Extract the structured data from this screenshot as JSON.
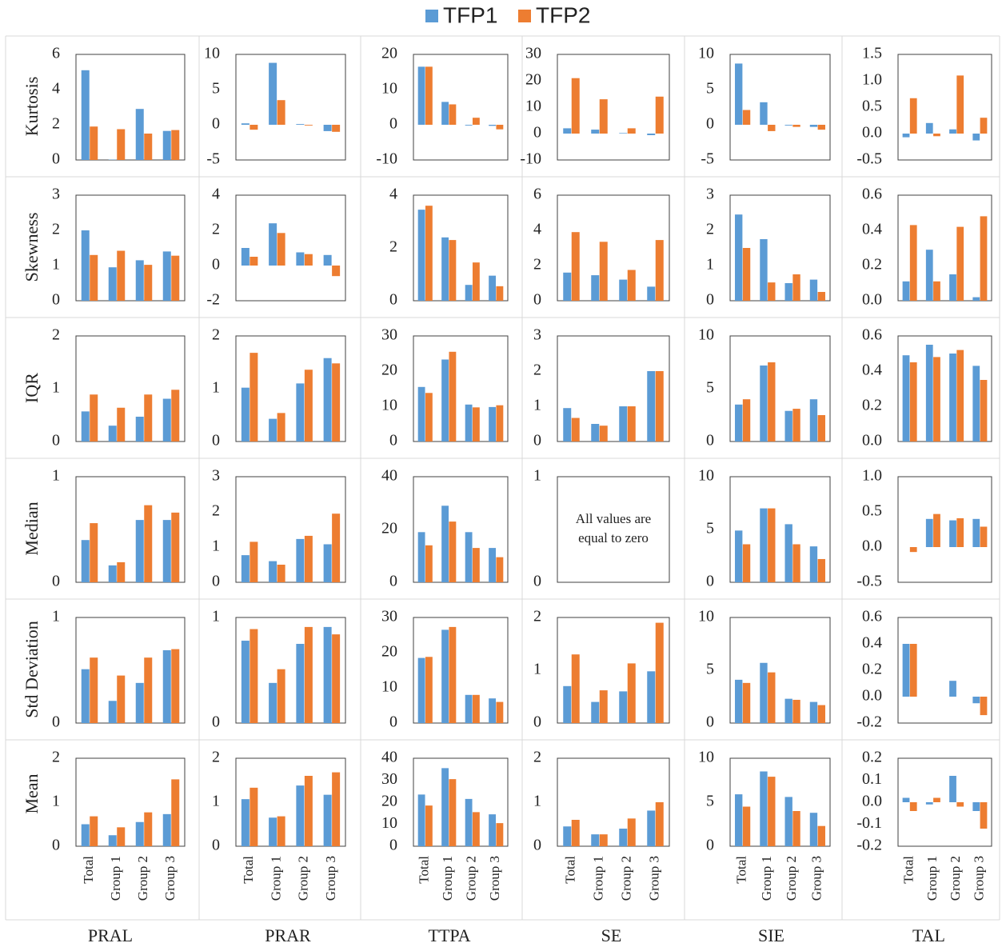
{
  "legend": [
    {
      "name": "TFP1",
      "color": "#5b9bd5"
    },
    {
      "name": "TFP2",
      "color": "#ed7d31"
    }
  ],
  "chart_data": [
    {
      "type": "bar",
      "ylabel": "Kurtosis",
      "ylim": [
        0,
        6
      ],
      "yticks": [
        0,
        2,
        4,
        6
      ],
      "series": [
        {
          "values": [
            5.1,
            0.02,
            2.9,
            1.65
          ]
        },
        {
          "values": [
            1.9,
            1.75,
            1.5,
            1.7
          ]
        }
      ]
    },
    {
      "type": "bar",
      "ylim": [
        -5,
        10
      ],
      "yticks": [
        -5,
        0,
        5,
        10
      ],
      "series": [
        {
          "values": [
            0.2,
            8.8,
            0.1,
            -0.9
          ]
        },
        {
          "values": [
            -0.7,
            3.5,
            -0.1,
            -1.0
          ]
        }
      ]
    },
    {
      "type": "bar",
      "ylim": [
        -10,
        20
      ],
      "yticks": [
        -10,
        0,
        10,
        20
      ],
      "series": [
        {
          "values": [
            16.5,
            6.5,
            -0.2,
            -0.3
          ]
        },
        {
          "values": [
            16.5,
            5.8,
            2,
            -1.3
          ]
        }
      ]
    },
    {
      "type": "bar",
      "ylim": [
        -10,
        30
      ],
      "yticks": [
        -10,
        0,
        10,
        20,
        30
      ],
      "series": [
        {
          "values": [
            2,
            1.5,
            0.2,
            -0.6
          ]
        },
        {
          "values": [
            21,
            13,
            2,
            14
          ]
        }
      ]
    },
    {
      "type": "bar",
      "ylim": [
        -5,
        10
      ],
      "yticks": [
        -5,
        0,
        5,
        10
      ],
      "series": [
        {
          "values": [
            8.7,
            3.2,
            -0.1,
            -0.3
          ]
        },
        {
          "values": [
            2.1,
            -0.9,
            -0.3,
            -0.7
          ]
        }
      ]
    },
    {
      "type": "bar",
      "ylim": [
        -0.5,
        1.5
      ],
      "yticks": [
        -0.5,
        {
          "value": 0,
          "label": "0.0"
        },
        0.5,
        {
          "value": 1,
          "label": "1.0"
        },
        1.5
      ],
      "series": [
        {
          "values": [
            -0.07,
            0.2,
            0.08,
            -0.13
          ]
        },
        {
          "values": [
            0.67,
            -0.05,
            1.1,
            0.3
          ]
        }
      ]
    },
    {
      "type": "bar",
      "ylabel": "Skewness",
      "ylim": [
        0,
        3
      ],
      "yticks": [
        0,
        1,
        2,
        3
      ],
      "series": [
        {
          "values": [
            2.0,
            0.95,
            1.15,
            1.4
          ]
        },
        {
          "values": [
            1.3,
            1.42,
            1.02,
            1.28
          ]
        }
      ]
    },
    {
      "type": "bar",
      "ylim": [
        -2,
        4
      ],
      "yticks": [
        -2,
        0,
        2,
        4
      ],
      "series": [
        {
          "values": [
            1.0,
            2.4,
            0.75,
            0.6
          ]
        },
        {
          "values": [
            0.5,
            1.85,
            0.65,
            -0.6
          ]
        }
      ]
    },
    {
      "type": "bar",
      "ylim": [
        0,
        4
      ],
      "yticks": [
        0,
        2,
        4
      ],
      "series": [
        {
          "values": [
            3.45,
            2.4,
            0.6,
            0.95
          ]
        },
        {
          "values": [
            3.6,
            2.3,
            1.45,
            0.55
          ]
        }
      ]
    },
    {
      "type": "bar",
      "ylim": [
        0,
        6
      ],
      "yticks": [
        0,
        2,
        4,
        6
      ],
      "series": [
        {
          "values": [
            1.6,
            1.45,
            1.2,
            0.8
          ]
        },
        {
          "values": [
            3.9,
            3.35,
            1.75,
            3.45
          ]
        }
      ]
    },
    {
      "type": "bar",
      "ylim": [
        0,
        3
      ],
      "yticks": [
        0,
        1,
        2,
        3
      ],
      "series": [
        {
          "values": [
            2.45,
            1.75,
            0.5,
            0.6
          ]
        },
        {
          "values": [
            1.5,
            0.52,
            0.75,
            0.25
          ]
        }
      ]
    },
    {
      "type": "bar",
      "ylim": [
        0,
        0.6
      ],
      "yticks": [
        {
          "value": 0,
          "label": "0.0"
        },
        0.2,
        0.4,
        0.6
      ],
      "series": [
        {
          "values": [
            0.11,
            0.29,
            0.15,
            0.02
          ]
        },
        {
          "values": [
            0.43,
            0.11,
            0.42,
            0.48
          ]
        }
      ]
    },
    {
      "type": "bar",
      "ylabel": "IQR",
      "ylim": [
        0,
        2
      ],
      "yticks": [
        0,
        1,
        2
      ],
      "series": [
        {
          "values": [
            0.57,
            0.3,
            0.47,
            0.81
          ]
        },
        {
          "values": [
            0.89,
            0.64,
            0.89,
            0.98
          ]
        }
      ]
    },
    {
      "type": "bar",
      "ylim": [
        0,
        2
      ],
      "yticks": [
        0,
        1,
        2
      ],
      "series": [
        {
          "values": [
            1.02,
            0.43,
            1.1,
            1.58
          ]
        },
        {
          "values": [
            1.68,
            0.54,
            1.36,
            1.48
          ]
        }
      ]
    },
    {
      "type": "bar",
      "ylim": [
        0,
        30
      ],
      "yticks": [
        0,
        10,
        20,
        30
      ],
      "series": [
        {
          "values": [
            15.5,
            23.3,
            10.5,
            9.8
          ]
        },
        {
          "values": [
            13.8,
            25.5,
            9.7,
            10.3
          ]
        }
      ]
    },
    {
      "type": "bar",
      "ylim": [
        0,
        3
      ],
      "yticks": [
        0,
        1,
        2,
        3
      ],
      "series": [
        {
          "values": [
            0.95,
            0.5,
            1.0,
            2.0
          ]
        },
        {
          "values": [
            0.67,
            0.45,
            1.0,
            2.0
          ]
        }
      ]
    },
    {
      "type": "bar",
      "ylim": [
        0,
        10
      ],
      "yticks": [
        0,
        5,
        10
      ],
      "series": [
        {
          "values": [
            3.5,
            7.2,
            2.9,
            4.0
          ]
        },
        {
          "values": [
            4.0,
            7.5,
            3.1,
            2.5
          ]
        }
      ]
    },
    {
      "type": "bar",
      "ylim": [
        0,
        0.6
      ],
      "yticks": [
        {
          "value": 0,
          "label": "0.0"
        },
        0.2,
        0.4,
        0.6
      ],
      "series": [
        {
          "values": [
            0.49,
            0.55,
            0.5,
            0.43
          ]
        },
        {
          "values": [
            0.45,
            0.48,
            0.52,
            0.35
          ]
        }
      ]
    },
    {
      "type": "bar",
      "ylabel": "Median",
      "ylim": [
        0,
        1
      ],
      "yticks": [
        0,
        1
      ],
      "series": [
        {
          "values": [
            0.4,
            0.16,
            0.59,
            0.59
          ]
        },
        {
          "values": [
            0.56,
            0.19,
            0.73,
            0.66
          ]
        }
      ]
    },
    {
      "type": "bar",
      "ylim": [
        0,
        3
      ],
      "yticks": [
        0,
        1,
        2,
        3
      ],
      "series": [
        {
          "values": [
            0.77,
            0.6,
            1.23,
            1.08
          ]
        },
        {
          "values": [
            1.15,
            0.5,
            1.32,
            1.95
          ]
        }
      ]
    },
    {
      "type": "bar",
      "ylim": [
        0,
        40
      ],
      "yticks": [
        0,
        20,
        40
      ],
      "series": [
        {
          "values": [
            19,
            29,
            19,
            13
          ]
        },
        {
          "values": [
            14,
            23,
            13,
            9.5
          ]
        }
      ]
    },
    {
      "type": "bar",
      "ylim": [
        0,
        1
      ],
      "yticks": [
        0,
        1
      ],
      "annotation": [
        "All values are",
        "equal to zero"
      ],
      "series": [
        {
          "values": [
            0,
            0,
            0,
            0
          ]
        },
        {
          "values": [
            0,
            0,
            0,
            0
          ]
        }
      ]
    },
    {
      "type": "bar",
      "ylim": [
        0,
        10
      ],
      "yticks": [
        0,
        5,
        10
      ],
      "series": [
        {
          "values": [
            4.9,
            7.0,
            5.5,
            3.4
          ]
        },
        {
          "values": [
            3.6,
            7.0,
            3.6,
            2.2
          ]
        }
      ]
    },
    {
      "type": "bar",
      "ylim": [
        -0.5,
        1.0
      ],
      "yticks": [
        -0.5,
        {
          "value": 0,
          "label": "0.0"
        },
        0.5,
        {
          "value": 1,
          "label": "1.0"
        }
      ],
      "series": [
        {
          "values": [
            0,
            0.4,
            0.38,
            0.4
          ]
        },
        {
          "values": [
            -0.07,
            0.47,
            0.41,
            0.29
          ]
        }
      ]
    },
    {
      "type": "bar",
      "ylabel": "Std Deviation",
      "ylim": [
        0,
        1
      ],
      "yticks": [
        0,
        1
      ],
      "series": [
        {
          "values": [
            0.51,
            0.21,
            0.38,
            0.69
          ]
        },
        {
          "values": [
            0.62,
            0.45,
            0.62,
            0.7
          ]
        }
      ]
    },
    {
      "type": "bar",
      "ylim": [
        0,
        1
      ],
      "yticks": [
        0,
        1
      ],
      "series": [
        {
          "values": [
            0.78,
            0.38,
            0.75,
            0.91
          ]
        },
        {
          "values": [
            0.89,
            0.51,
            0.91,
            0.84
          ]
        }
      ]
    },
    {
      "type": "bar",
      "ylim": [
        0,
        30
      ],
      "yticks": [
        0,
        10,
        20,
        30
      ],
      "series": [
        {
          "values": [
            18.5,
            26.5,
            8,
            7
          ]
        },
        {
          "values": [
            18.8,
            27.3,
            8,
            6
          ]
        }
      ]
    },
    {
      "type": "bar",
      "ylim": [
        0,
        2
      ],
      "yticks": [
        0,
        1,
        2
      ],
      "series": [
        {
          "values": [
            0.7,
            0.4,
            0.6,
            0.98
          ]
        },
        {
          "values": [
            1.3,
            0.62,
            1.13,
            1.9
          ]
        }
      ]
    },
    {
      "type": "bar",
      "ylim": [
        0,
        10
      ],
      "yticks": [
        0,
        5,
        10
      ],
      "series": [
        {
          "values": [
            4.1,
            5.7,
            2.3,
            2.0
          ]
        },
        {
          "values": [
            3.8,
            4.8,
            2.2,
            1.7
          ]
        }
      ]
    },
    {
      "type": "bar",
      "ylim": [
        -0.2,
        0.6
      ],
      "yticks": [
        -0.2,
        {
          "value": 0,
          "label": "0.0"
        },
        0.2,
        0.4,
        0.6
      ],
      "series": [
        {
          "values": [
            0.4,
            0,
            0.12,
            -0.05
          ]
        },
        {
          "values": [
            0.4,
            0,
            0,
            -0.14
          ]
        }
      ]
    },
    {
      "type": "bar",
      "ylabel": "Mean",
      "xlabel": "PRAL",
      "categories": [
        "Total",
        "Group 1",
        "Group 2",
        "Group 3"
      ],
      "ylim": [
        0,
        2
      ],
      "yticks": [
        0,
        1,
        2
      ],
      "series": [
        {
          "values": [
            0.5,
            0.25,
            0.55,
            0.73
          ]
        },
        {
          "values": [
            0.68,
            0.43,
            0.77,
            1.52
          ]
        }
      ]
    },
    {
      "type": "bar",
      "xlabel": "PRAR",
      "categories": [
        "Total",
        "Group 1",
        "Group 2",
        "Group 3"
      ],
      "ylim": [
        0,
        2
      ],
      "yticks": [
        0,
        1,
        2
      ],
      "series": [
        {
          "values": [
            1.07,
            0.65,
            1.38,
            1.17
          ]
        },
        {
          "values": [
            1.33,
            0.68,
            1.6,
            1.68
          ]
        }
      ]
    },
    {
      "type": "bar",
      "xlabel": "TTPA",
      "categories": [
        "Total",
        "Group 1",
        "Group 2",
        "Group 3"
      ],
      "ylim": [
        0,
        40
      ],
      "yticks": [
        0,
        10,
        20,
        30,
        40
      ],
      "series": [
        {
          "values": [
            23.5,
            35.5,
            21.5,
            14.5
          ]
        },
        {
          "values": [
            18.5,
            30.5,
            15.5,
            10.5
          ]
        }
      ]
    },
    {
      "type": "bar",
      "xlabel": "SE",
      "categories": [
        "Total",
        "Group 1",
        "Group 2",
        "Group 3"
      ],
      "ylim": [
        0,
        2
      ],
      "yticks": [
        0,
        1,
        2
      ],
      "series": [
        {
          "values": [
            0.45,
            0.27,
            0.4,
            0.81
          ]
        },
        {
          "values": [
            0.6,
            0.27,
            0.63,
            1.0
          ]
        }
      ]
    },
    {
      "type": "bar",
      "xlabel": "SIE",
      "categories": [
        "Total",
        "Group 1",
        "Group 2",
        "Group 3"
      ],
      "ylim": [
        0,
        10
      ],
      "yticks": [
        0,
        5,
        10
      ],
      "series": [
        {
          "values": [
            5.9,
            8.5,
            5.6,
            3.8
          ]
        },
        {
          "values": [
            4.5,
            7.9,
            4.0,
            2.3
          ]
        }
      ]
    },
    {
      "type": "bar",
      "xlabel": "TAL",
      "categories": [
        "Total",
        "Group 1",
        "Group 2",
        "Group 3"
      ],
      "ylim": [
        -0.2,
        0.2
      ],
      "yticks": [
        -0.2,
        -0.1,
        {
          "value": 0,
          "label": "0.0"
        },
        0.1,
        0.2
      ],
      "series": [
        {
          "values": [
            0.02,
            -0.01,
            0.12,
            -0.04
          ]
        },
        {
          "values": [
            -0.04,
            0.02,
            -0.02,
            -0.12
          ]
        }
      ]
    }
  ]
}
